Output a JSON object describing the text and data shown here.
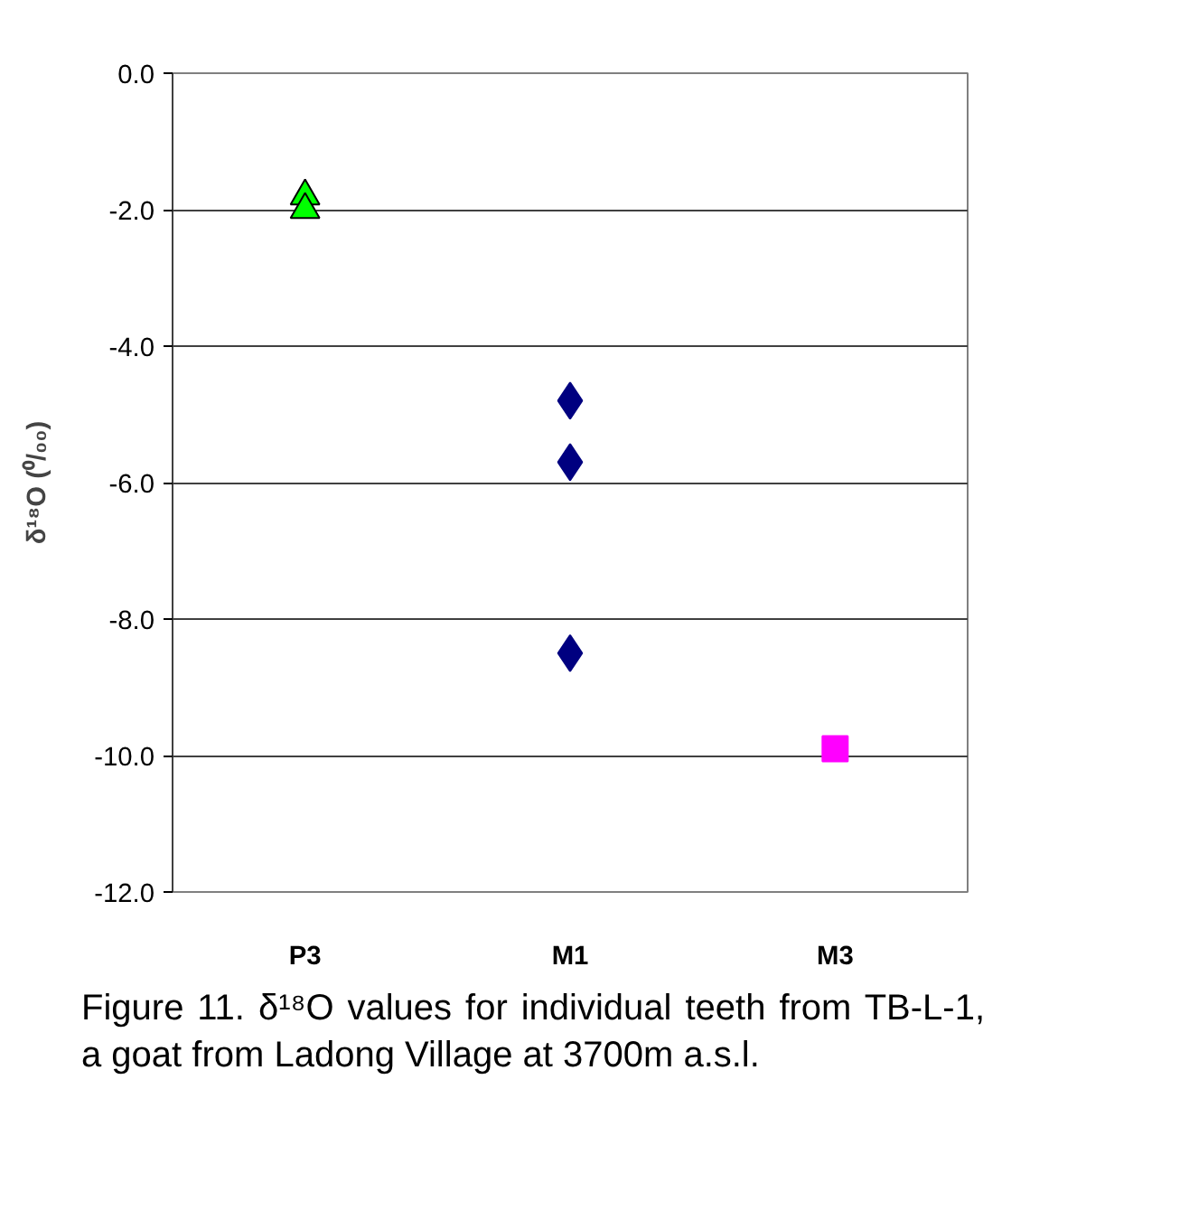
{
  "chart_data": {
    "type": "scatter",
    "categories": [
      "P3",
      "M1",
      "M3"
    ],
    "ylabel": "δ¹⁸O (⁰/₀₀)",
    "ylim": [
      -12,
      0
    ],
    "yticks": [
      {
        "value": 0,
        "label": "0.0"
      },
      {
        "value": -2,
        "label": "-2.0"
      },
      {
        "value": -4,
        "label": "-4.0"
      },
      {
        "value": -6,
        "label": "-6.0"
      },
      {
        "value": -8,
        "label": "-8.0"
      },
      {
        "value": -10,
        "label": "-10.0"
      },
      {
        "value": -12,
        "label": "-12.0"
      }
    ],
    "grid": "y",
    "series": [
      {
        "marker": "triangle",
        "color": "#00ff00",
        "x": [
          "P3",
          "P3"
        ],
        "values": [
          -1.8,
          -2.0
        ]
      },
      {
        "marker": "diamond",
        "color": "#000080",
        "x": [
          "M1",
          "M1",
          "M1"
        ],
        "values": [
          -4.8,
          -5.7,
          -8.5
        ]
      },
      {
        "marker": "square",
        "color": "#ff00ff",
        "x": [
          "M3"
        ],
        "values": [
          -9.9
        ]
      }
    ],
    "annotations": [
      "Figure 11.  δ¹⁸O values for individual teeth from TB-L-1, a goat from Ladong Village at 3700m a.s.l."
    ]
  }
}
